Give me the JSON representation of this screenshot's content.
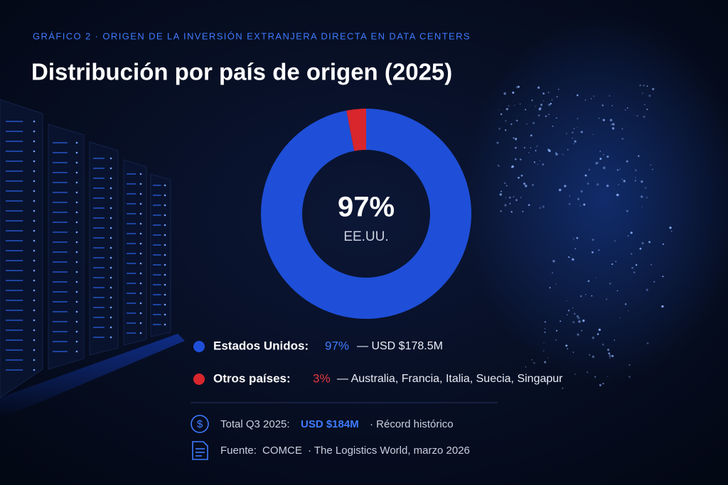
{
  "chart_data": {
    "type": "donut",
    "kicker": "GRÁFICO 2 · ORIGEN DE LA INVERSIÓN EXTRANJERA DIRECTA EN DATA CENTERS",
    "title": "Distribución por país de origen (2025)",
    "center_value_label": "97%",
    "center_label": "EE.UU.",
    "categories": [
      "Estados Unidos:",
      "Otros países:"
    ],
    "values": [
      97,
      3
    ],
    "value_labels": [
      "97%",
      "3%"
    ],
    "colors": [
      "#1f4fd8",
      "#d8262c"
    ],
    "label_colors": [
      "#3f7bff",
      "#e23a3f"
    ],
    "details": [
      "— USD $178.5M",
      "— Australia, Francia, Italia, Suecia, Singapur"
    ]
  },
  "footer": {
    "total_label": "Total Q3 2025:",
    "total_value": "USD $184M",
    "total_note": "· Récord histórico",
    "source_label": "Fuente:",
    "source": "COMCE",
    "source_note": "· The Logistics World, marzo 2026"
  }
}
